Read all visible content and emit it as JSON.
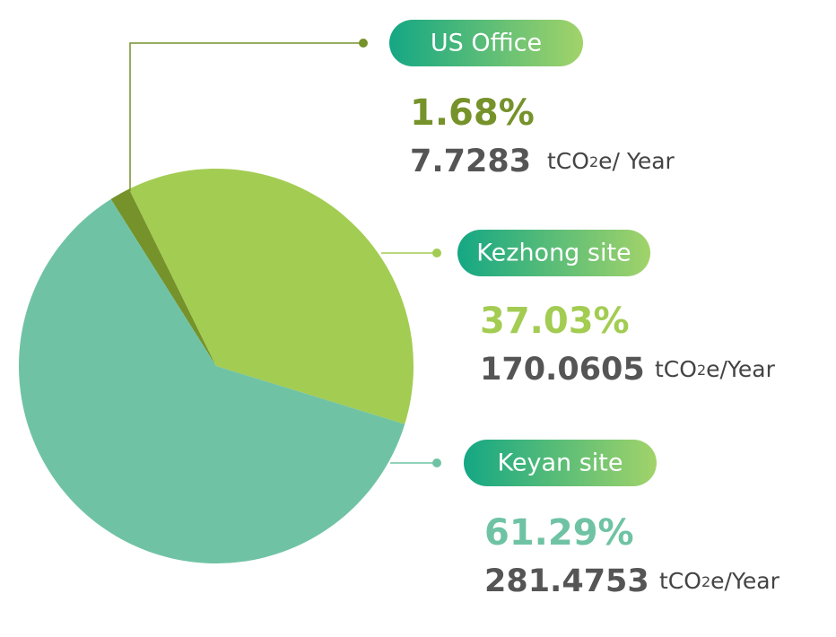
{
  "chart_data": {
    "type": "pie",
    "categories": [
      "US Office",
      "Kezhong site",
      "Keyan site"
    ],
    "values": [
      1.68,
      37.03,
      61.29
    ],
    "value_labels": [
      "1.68%",
      "37.03%",
      "61.29%"
    ],
    "colors": [
      "#76922a",
      "#a3cc52",
      "#6fc3a4"
    ],
    "amounts": [
      7.7283,
      170.0605,
      281.4753
    ],
    "units": [
      {
        "prefix": "tCO",
        "sub": "2",
        "suffix": "e/ Year"
      },
      {
        "prefix": "tCO",
        "sub": "2",
        "suffix": "e/Year"
      },
      {
        "prefix": "tCO",
        "sub": "2",
        "suffix": "e/Year"
      }
    ]
  }
}
